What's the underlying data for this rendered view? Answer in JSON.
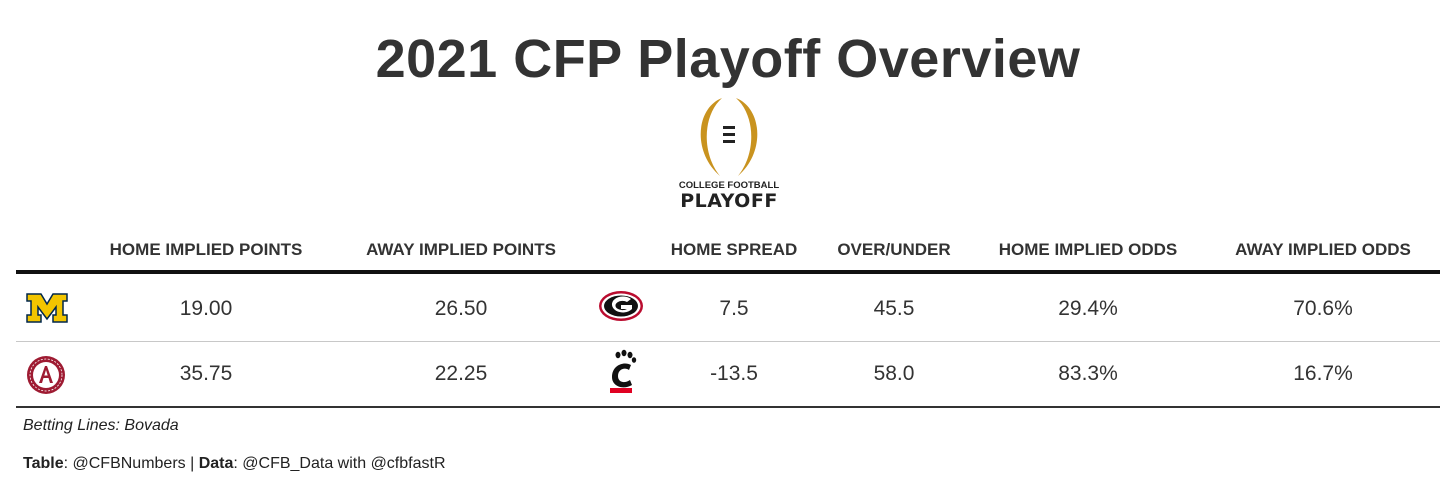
{
  "title": "2021 CFP Playoff Overview",
  "logo": {
    "line1": "COLLEGE FOOTBALL",
    "line2": "PLAYOFF",
    "gold": "#c9931f"
  },
  "chart_data": {
    "type": "table",
    "title": "2021 CFP Playoff Overview",
    "columns": [
      "HOME IMPLIED POINTS",
      "AWAY IMPLIED POINTS",
      "HOME SPREAD",
      "OVER/UNDER",
      "HOME IMPLIED ODDS",
      "AWAY IMPLIED ODDS"
    ],
    "rows": [
      {
        "home_team_logo": "michigan-logo",
        "home_implied_points": "19.00",
        "away_implied_points": "26.50",
        "away_team_logo": "georgia-logo",
        "home_spread": "7.5",
        "over_under": "45.5",
        "home_implied_odds": "29.4%",
        "away_implied_odds": "70.6%"
      },
      {
        "home_team_logo": "alabama-logo",
        "home_implied_points": "35.75",
        "away_implied_points": "22.25",
        "away_team_logo": "cincinnati-logo",
        "home_spread": "-13.5",
        "over_under": "58.0",
        "home_implied_odds": "83.3%",
        "away_implied_odds": "16.7%"
      }
    ]
  },
  "colors": {
    "michigan_maize": "#f2c500",
    "michigan_blue": "#00274c",
    "georgia_red": "#ba0c2f",
    "alabama_crimson": "#9e1b32",
    "cincinnati_red": "#e00122"
  },
  "footer": {
    "betting_lines": "Betting Lines: Bovada",
    "table_label": "Table",
    "table_value": ": @CFBNumbers | ",
    "data_label": "Data",
    "data_value": ": @CFB_Data with @cfbfastR"
  }
}
